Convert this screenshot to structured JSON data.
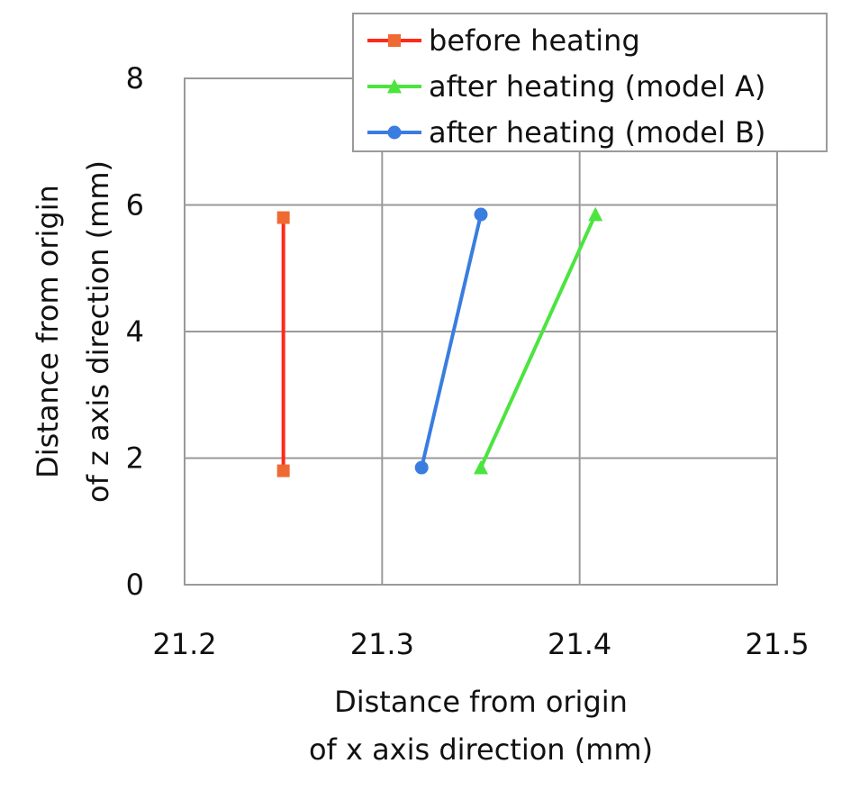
{
  "chart_data": {
    "type": "line",
    "xlabel": [
      "Distance from origin",
      "of x axis direction (mm)"
    ],
    "ylabel": [
      "Distance from origin",
      "of z axis direction (mm)"
    ],
    "xlim": [
      21.2,
      21.5
    ],
    "ylim": [
      0,
      8
    ],
    "x_ticks": [
      "21.2",
      "21.3",
      "21.4",
      "21.5"
    ],
    "y_ticks": [
      "0",
      "2",
      "4",
      "6",
      "8"
    ],
    "x_tick_values": [
      21.2,
      21.3,
      21.4,
      21.5
    ],
    "y_tick_values": [
      0,
      2,
      4,
      6,
      8
    ],
    "grid": true,
    "legend_position": "top-right",
    "series": [
      {
        "name": "before heating",
        "color": "#ff2a1a",
        "marker_color": "#ef6a33",
        "marker": "square",
        "points": [
          {
            "x": 21.25,
            "y": 1.8
          },
          {
            "x": 21.25,
            "y": 5.8
          }
        ]
      },
      {
        "name": "after heating (model A)",
        "color": "#4ce43f",
        "marker_color": "#4ce43f",
        "marker": "triangle",
        "points": [
          {
            "x": 21.35,
            "y": 1.85
          },
          {
            "x": 21.408,
            "y": 5.85
          }
        ]
      },
      {
        "name": "after heating (model B)",
        "color": "#3a7de0",
        "marker_color": "#3a7de0",
        "marker": "circle",
        "points": [
          {
            "x": 21.32,
            "y": 1.85
          },
          {
            "x": 21.35,
            "y": 5.85
          }
        ]
      }
    ]
  }
}
